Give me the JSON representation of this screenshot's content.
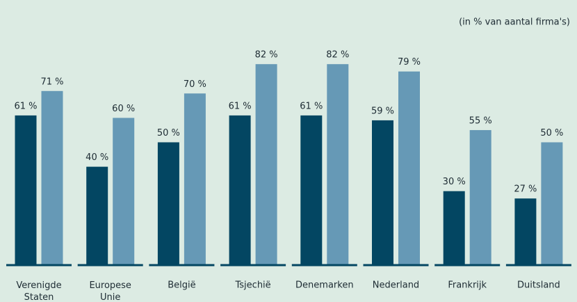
{
  "chart_data": {
    "type": "bar",
    "subtitle": "(in % van aantal firma's)",
    "categories": [
      "Verenigde Staten",
      "Europese Unie",
      "België",
      "Tsjechië",
      "Denemarken",
      "Nederland",
      "Frankrijk",
      "Duitsland"
    ],
    "series": [
      {
        "color": "#034662",
        "values": [
          61,
          40,
          50,
          61,
          61,
          59,
          30,
          27
        ],
        "value_labels": [
          "61 %",
          "40 %",
          "50 %",
          "61 %",
          "61 %",
          "59 %",
          "30 %",
          "27 %"
        ]
      },
      {
        "color": "#6699b6",
        "values": [
          71,
          60,
          70,
          82,
          82,
          79,
          55,
          50
        ],
        "value_labels": [
          "71 %",
          "60 %",
          "70 %",
          "82 %",
          "82 %",
          "79 %",
          "55 %",
          "50 %"
        ]
      }
    ],
    "ylim": [
      0,
      100
    ]
  }
}
